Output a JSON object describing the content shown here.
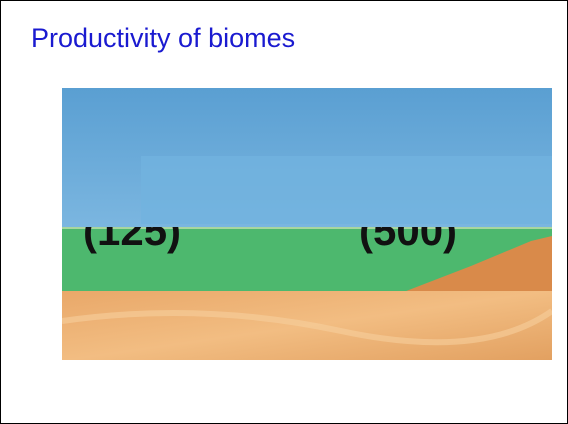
{
  "title": "Productivity of biomes",
  "image": {
    "labels": [
      "(125)",
      "(500)"
    ]
  }
}
